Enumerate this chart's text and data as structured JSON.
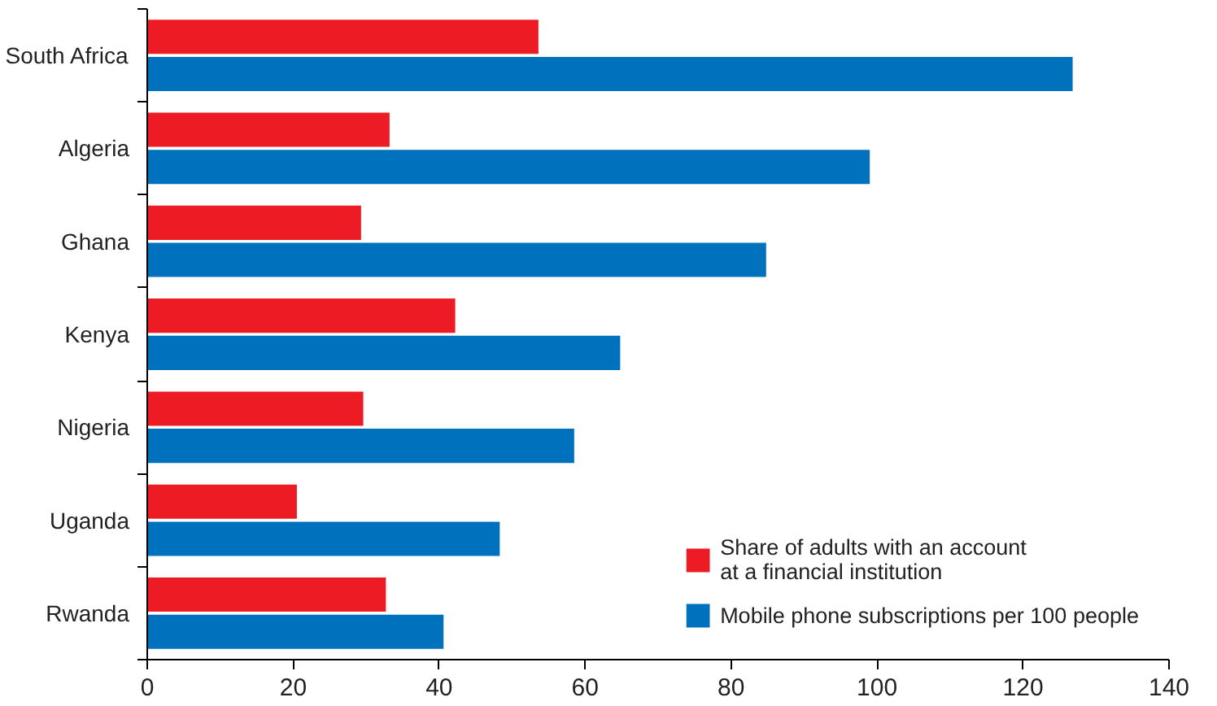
{
  "chart_data": {
    "type": "bar",
    "orientation": "horizontal",
    "categories": [
      "South Africa",
      "Algeria",
      "Ghana",
      "Kenya",
      "Nigeria",
      "Uganda",
      "Rwanda"
    ],
    "series": [
      {
        "name": "Share of adults with an account at a financial institution",
        "color": "#ed1c24",
        "values": [
          53.6,
          33.2,
          29.3,
          42.2,
          29.6,
          20.5,
          32.7
        ]
      },
      {
        "name": "Mobile phone subscriptions per 100 people",
        "color": "#0071bc",
        "values": [
          126.8,
          99.0,
          84.8,
          64.8,
          58.5,
          48.3,
          40.6
        ]
      }
    ],
    "xlim": [
      0,
      140
    ],
    "xticks": [
      0,
      20,
      40,
      60,
      80,
      100,
      120,
      140
    ],
    "grid": false,
    "legend": "bottom right"
  }
}
